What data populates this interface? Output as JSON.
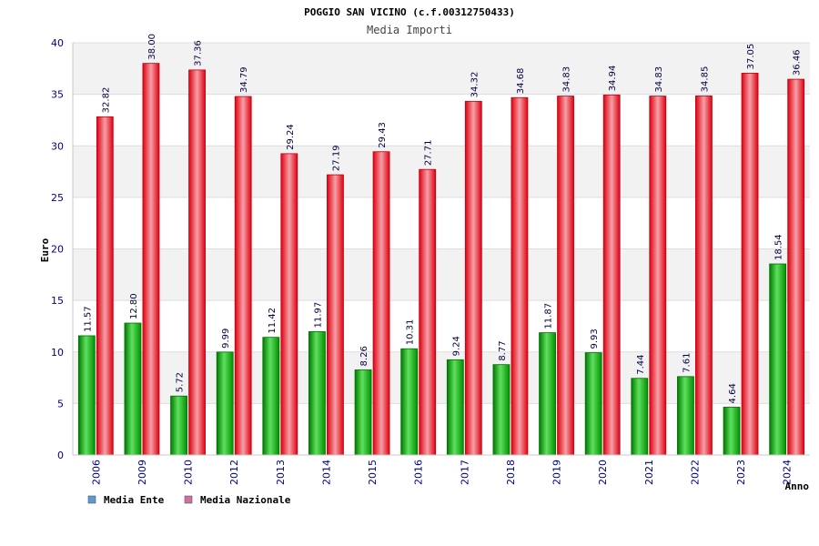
{
  "chart_data": {
    "type": "bar",
    "title": "POGGIO SAN VICINO (c.f.00312750433)",
    "subtitle": "Media Importi",
    "xlabel": "Anno",
    "ylabel": "Euro",
    "ylim": [
      0,
      40
    ],
    "yticks": [
      "0",
      "5",
      "10",
      "15",
      "20",
      "25",
      "30",
      "35",
      "40"
    ],
    "grid": true,
    "legend_position": "bottom-left",
    "categories": [
      "2006",
      "2009",
      "2010",
      "2012",
      "2013",
      "2014",
      "2015",
      "2016",
      "2017",
      "2018",
      "2019",
      "2020",
      "2021",
      "2022",
      "2023",
      "2024"
    ],
    "series": [
      {
        "name": "Media Ente",
        "color": "#00a000",
        "legend_color": "#5b9bd5",
        "values": [
          11.57,
          12.8,
          5.72,
          9.99,
          11.42,
          11.97,
          8.26,
          10.31,
          9.24,
          8.77,
          11.87,
          9.93,
          7.44,
          7.61,
          4.64,
          18.54
        ],
        "labels": [
          "11.57",
          "12.80",
          "5.72",
          "9.99",
          "11.42",
          "11.97",
          "8.26",
          "10.31",
          "9.24",
          "8.77",
          "11.87",
          "9.93",
          "7.44",
          "7.61",
          "4.64",
          "18.54"
        ]
      },
      {
        "name": "Media Nazionale",
        "color": "#e01020",
        "legend_color": "#d070a0",
        "values": [
          32.82,
          38.0,
          37.36,
          34.79,
          29.24,
          27.19,
          29.43,
          27.71,
          34.32,
          34.68,
          34.83,
          34.94,
          34.83,
          34.85,
          37.05,
          36.46
        ],
        "labels": [
          "32.82",
          "38.00",
          "37.36",
          "34.79",
          "29.24",
          "27.19",
          "29.43",
          "27.71",
          "34.32",
          "34.68",
          "34.83",
          "34.94",
          "34.83",
          "34.85",
          "37.05",
          "36.46"
        ]
      }
    ]
  }
}
